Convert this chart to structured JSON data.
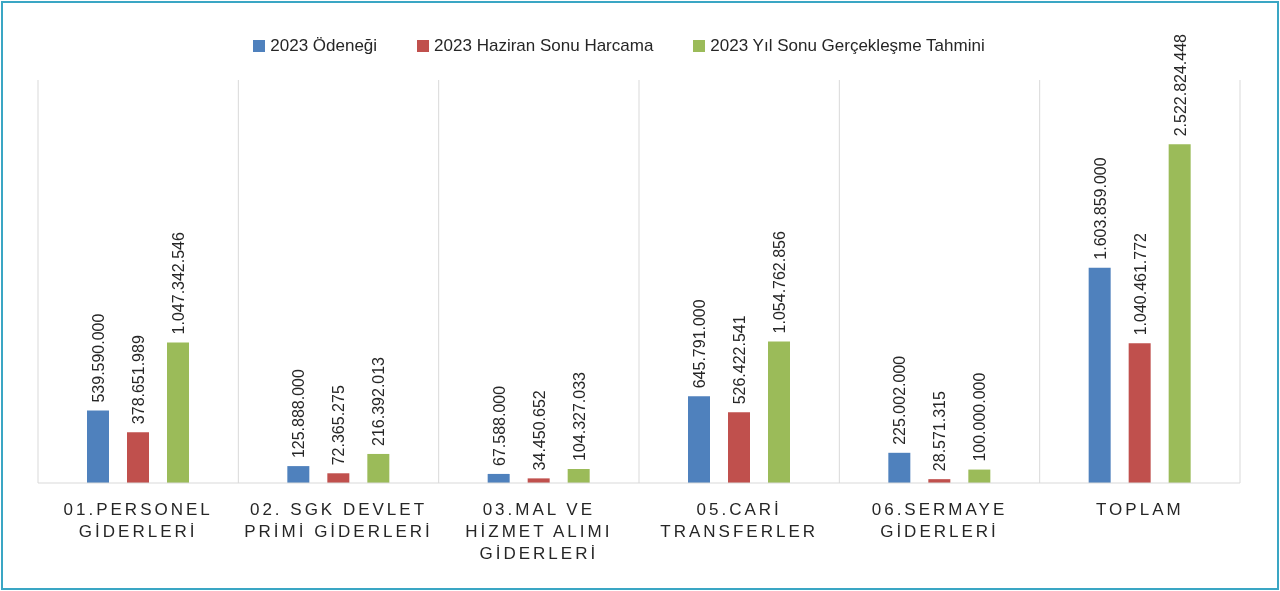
{
  "chart_data": {
    "type": "bar",
    "categories": [
      "01.PERSONEL GİDERLERİ",
      "02. SGK DEVLET PRİMİ GİDERLERİ",
      "03.MAL VE HİZMET ALIMI GİDERLERİ",
      "05.CARİ TRANSFERLER",
      "06.SERMAYE GİDERLERİ",
      "TOPLAM"
    ],
    "series": [
      {
        "name": "2023 Ödeneği",
        "color": "#4f81bd",
        "values": [
          539590000,
          125888000,
          67588000,
          645791000,
          225002000,
          1603859000
        ],
        "value_labels": [
          "539.590.000",
          "125.888.000",
          "67.588.000",
          "645.791.000",
          "225.002.000",
          "1.603.859.000"
        ]
      },
      {
        "name": "2023 Haziran Sonu Harcama",
        "color": "#c0504d",
        "values": [
          378651989,
          72365275,
          34450652,
          526422541,
          28571315,
          1040461772
        ],
        "value_labels": [
          "378.651.989",
          "72.365.275",
          "34.450.652",
          "526.422.541",
          "28.571.315",
          "1.040.461.772"
        ]
      },
      {
        "name": "2023 Yıl Sonu Gerçekleşme Tahmini",
        "color": "#9bbb59",
        "values": [
          1047342546,
          216392013,
          104327033,
          1054762856,
          100000000,
          2522824448
        ],
        "value_labels": [
          "1.047.342.546",
          "216.392.013",
          "104.327.033",
          "1.054.762.856",
          "100.000.000",
          "2.522.824.448"
        ]
      }
    ],
    "grid": "x",
    "legend": "top"
  }
}
